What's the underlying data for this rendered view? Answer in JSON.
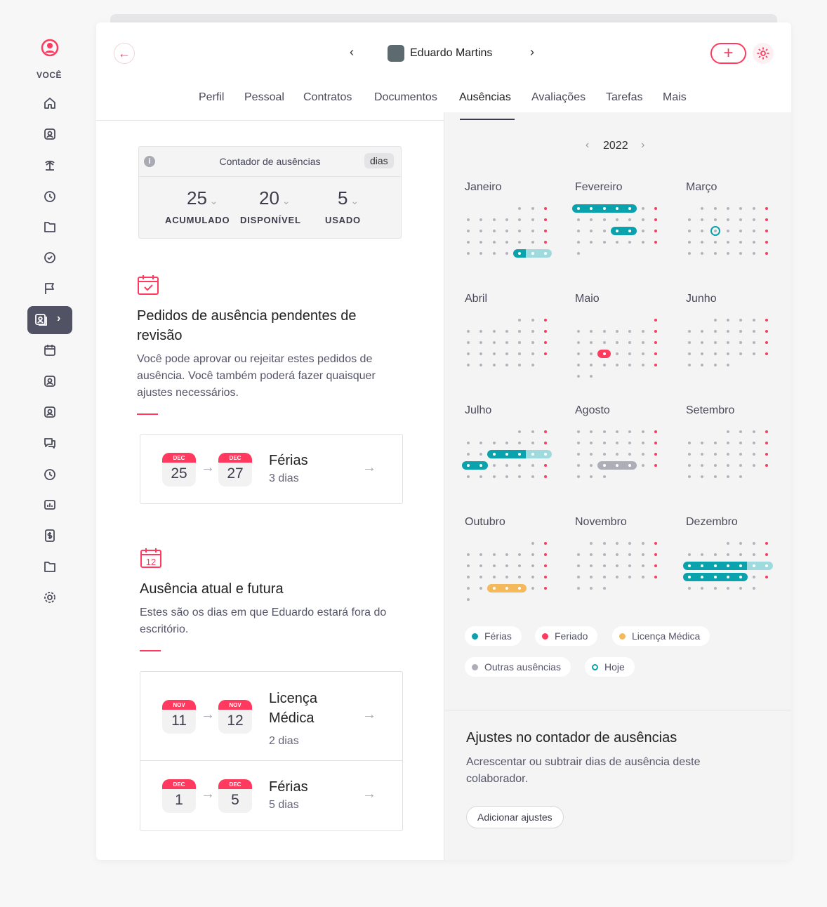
{
  "sidebar": {
    "you_label": "VOCÊ",
    "items": [
      "home-icon",
      "profile-card-icon",
      "palm-tree-icon",
      "clock-icon",
      "folder-user-icon",
      "check-circle-icon",
      "flag-icon",
      "people-cards-icon",
      "calendar-icon",
      "search-user-icon",
      "performance-icon",
      "chat-icon",
      "timer-icon",
      "chart-icon",
      "money-icon",
      "folder-icon",
      "gear-icon"
    ],
    "active_index": 7
  },
  "header": {
    "employee_name": "Eduardo Martins"
  },
  "tabs": [
    "Perfil",
    "Pessoal",
    "Contratos",
    "Documentos",
    "Ausências",
    "Avaliações",
    "Tarefas",
    "Mais"
  ],
  "active_tab": "Ausências",
  "counter": {
    "title": "Contador de ausências",
    "unit": "dias",
    "items": [
      {
        "value": "25",
        "label": "ACUMULADO"
      },
      {
        "value": "20",
        "label": "DISPONÍVEL"
      },
      {
        "value": "5",
        "label": "USADO"
      }
    ]
  },
  "pending": {
    "title": "Pedidos de ausência pendentes de revisão",
    "description": "Você pode aprovar ou rejeitar estes pedidos de ausência. Você também poderá fazer quaisquer ajustes necessários.",
    "requests": [
      {
        "from_month": "DEC",
        "from_day": "25",
        "to_month": "DEC",
        "to_day": "27",
        "type": "Férias",
        "duration": "3 dias"
      }
    ]
  },
  "current": {
    "title": "Ausência atual e futura",
    "description": "Estes são os dias em que Eduardo estará fora do escritório.",
    "requests": [
      {
        "from_month": "NOV",
        "from_day": "11",
        "to_month": "NOV",
        "to_day": "12",
        "type": "Licença Médica",
        "duration": "2 dias"
      },
      {
        "from_month": "DEC",
        "from_day": "1",
        "to_month": "DEC",
        "to_day": "5",
        "type": "Férias",
        "duration": "5 dias"
      }
    ]
  },
  "calendar": {
    "year": "2022",
    "colors": {
      "vacation": "#0aa2ad",
      "pending": "#9fdadf",
      "holiday": "#ff3a5e",
      "other": "#aeaeb8",
      "sick": "#f4b95a",
      "weekday": "#b4b4c0"
    },
    "months": [
      {
        "name": "Janeiro",
        "offset": 4,
        "days": 31,
        "marks": [
          {
            "from": 29,
            "to": 29,
            "type": "vacation"
          },
          {
            "from": 30,
            "to": 31,
            "type": "pending"
          }
        ]
      },
      {
        "name": "Fevereiro",
        "offset": 0,
        "days": 29,
        "marks": [
          {
            "from": 1,
            "to": 5,
            "type": "vacation"
          },
          {
            "from": 18,
            "to": 19,
            "type": "vacation"
          }
        ]
      },
      {
        "name": "Março",
        "offset": 1,
        "days": 34,
        "marks": [],
        "today": 16
      },
      {
        "name": "Abril",
        "offset": 4,
        "days": 30,
        "marks": []
      },
      {
        "name": "Maio",
        "offset": 6,
        "days": 31,
        "marks": [
          {
            "from": 18,
            "to": 18,
            "type": "holiday"
          }
        ]
      },
      {
        "name": "Junho",
        "offset": 2,
        "days": 30,
        "marks": []
      },
      {
        "name": "Julho",
        "offset": 4,
        "days": 31,
        "marks": [
          {
            "from": 13,
            "to": 15,
            "type": "vacation"
          },
          {
            "from": 16,
            "to": 17,
            "type": "pending"
          },
          {
            "from": 18,
            "to": 19,
            "type": "vacation"
          }
        ]
      },
      {
        "name": "Agosto",
        "offset": 0,
        "days": 31,
        "marks": [
          {
            "from": 24,
            "to": 26,
            "type": "other"
          }
        ]
      },
      {
        "name": "Setembro",
        "offset": 3,
        "days": 30,
        "marks": []
      },
      {
        "name": "Outubro",
        "offset": 5,
        "days": 31,
        "marks": [
          {
            "from": 26,
            "to": 28,
            "type": "sick"
          }
        ]
      },
      {
        "name": "Novembro",
        "offset": 1,
        "days": 30,
        "marks": []
      },
      {
        "name": "Dezembro",
        "offset": 3,
        "days": 31,
        "marks": [
          {
            "from": 12,
            "to": 16,
            "type": "vacation"
          },
          {
            "from": 17,
            "to": 18,
            "type": "pending"
          },
          {
            "from": 19,
            "to": 23,
            "type": "vacation"
          }
        ]
      }
    ],
    "legend": [
      {
        "label": "Férias",
        "color": "#0aa2ad"
      },
      {
        "label": "Feriado",
        "color": "#ff3a5e"
      },
      {
        "label": "Licença Médica",
        "color": "#f4b95a"
      },
      {
        "label": "Outras ausências",
        "color": "#aeaeb8"
      },
      {
        "label": "Hoje",
        "color": "#0aa2ad",
        "ring": true
      }
    ]
  },
  "adjust": {
    "title": "Ajustes no contador de ausências",
    "description": "Acrescentar ou subtrair dias de ausência deste colaborador.",
    "button": "Adicionar ajustes"
  }
}
